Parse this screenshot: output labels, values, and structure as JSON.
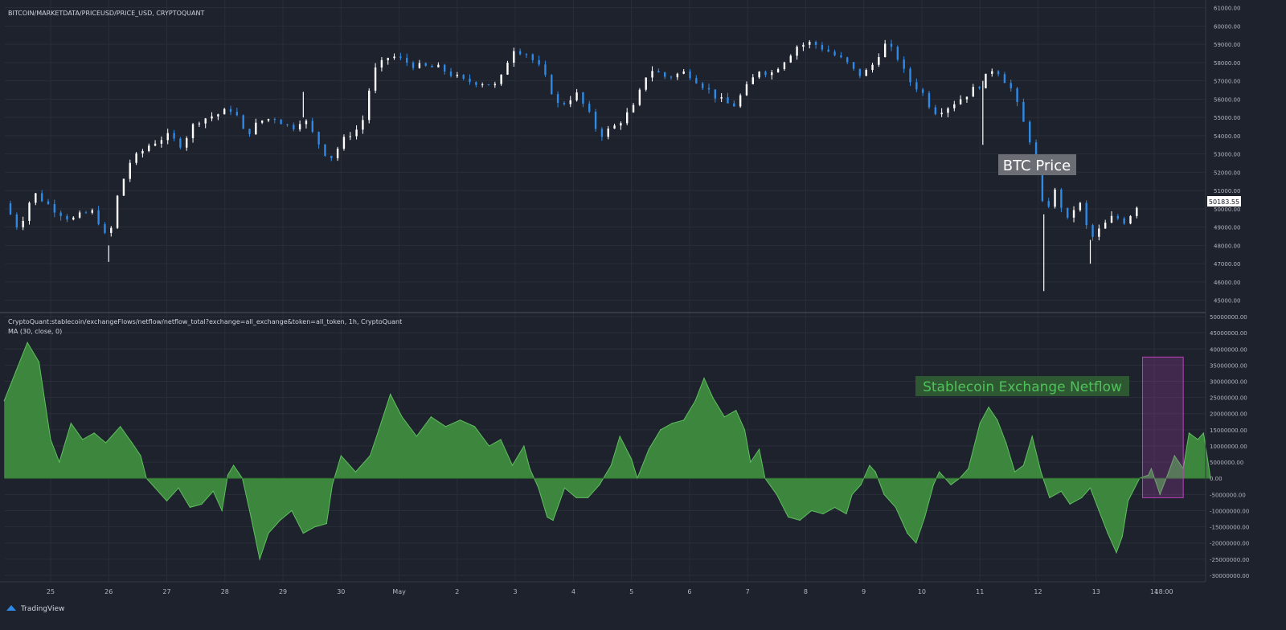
{
  "footer": {
    "brand": "TradingView"
  },
  "colors": {
    "background": "#1e222d",
    "grid": "#2a2e39",
    "up": "#ffffff",
    "down": "#2e8ae6",
    "area_fill": "#3f8f3f",
    "area_line": "#5fbf5f",
    "highlight": "#c040c0"
  },
  "chart_data": [
    {
      "type": "candlestick",
      "title": "BITCOIN/MARKETDATA/PRICEUSD/PRICE_USD, CRYPTOQUANT",
      "annotation": "BTC Price",
      "last_value_label": "50183.55",
      "last_value": 50183.55,
      "ylim": [
        44500,
        61250
      ],
      "y_ticks": [
        45000,
        46000,
        47000,
        48000,
        49000,
        50000,
        51000,
        52000,
        53000,
        54000,
        55000,
        56000,
        57000,
        58000,
        59000,
        60000,
        61000
      ],
      "y_tick_labels": [
        "45000.00",
        "46000.00",
        "47000.00",
        "48000.00",
        "49000.00",
        "50000.00",
        "51000.00",
        "52000.00",
        "53000.00",
        "54000.00",
        "55000.00",
        "56000.00",
        "57000.00",
        "58000.00",
        "59000.00",
        "60000.00",
        "61000.00"
      ],
      "x_ticks": [
        25,
        26,
        27,
        28,
        29,
        30,
        31,
        32,
        33,
        34,
        35,
        36,
        37,
        38,
        39,
        40,
        41,
        42,
        43,
        44,
        44.167
      ],
      "x_tick_labels": [
        "25",
        "26",
        "27",
        "28",
        "29",
        "30",
        "May",
        "2",
        "3",
        "4",
        "5",
        "6",
        "7",
        "8",
        "9",
        "10",
        "11",
        "12",
        "13",
        "14",
        "18:00"
      ],
      "price_path": [
        [
          24.2,
          50300
        ],
        [
          24.45,
          48900
        ],
        [
          24.7,
          50900
        ],
        [
          25.05,
          50000
        ],
        [
          25.35,
          49400
        ],
        [
          25.7,
          49900
        ],
        [
          25.85,
          49200
        ],
        [
          26.0,
          48000
        ],
        [
          26.1,
          50200
        ],
        [
          26.35,
          52500
        ],
        [
          26.7,
          53500
        ],
        [
          27.0,
          54000
        ],
        [
          27.25,
          53500
        ],
        [
          27.5,
          54800
        ],
        [
          27.9,
          55200
        ],
        [
          28.15,
          55500
        ],
        [
          28.35,
          54000
        ],
        [
          28.6,
          54800
        ],
        [
          28.85,
          55000
        ],
        [
          29.15,
          54400
        ],
        [
          29.35,
          55000
        ],
        [
          29.55,
          53900
        ],
        [
          29.8,
          52700
        ],
        [
          30.1,
          54000
        ],
        [
          30.35,
          54500
        ],
        [
          30.55,
          57500
        ],
        [
          30.85,
          58400
        ],
        [
          31.3,
          57800
        ],
        [
          31.7,
          57700
        ],
        [
          32.1,
          57000
        ],
        [
          32.45,
          56900
        ],
        [
          32.7,
          56700
        ],
        [
          32.95,
          58800
        ],
        [
          33.2,
          58500
        ],
        [
          33.45,
          57600
        ],
        [
          33.75,
          55600
        ],
        [
          34.05,
          56300
        ],
        [
          34.25,
          55300
        ],
        [
          34.45,
          54000
        ],
        [
          34.75,
          54600
        ],
        [
          35.05,
          55600
        ],
        [
          35.3,
          57700
        ],
        [
          35.6,
          57200
        ],
        [
          35.95,
          57500
        ],
        [
          36.25,
          56700
        ],
        [
          36.5,
          56000
        ],
        [
          36.75,
          55600
        ],
        [
          36.95,
          56500
        ],
        [
          37.2,
          57600
        ],
        [
          37.4,
          57400
        ],
        [
          37.65,
          58200
        ],
        [
          37.85,
          58900
        ],
        [
          38.1,
          59100
        ],
        [
          38.35,
          58700
        ],
        [
          38.7,
          58000
        ],
        [
          38.9,
          57300
        ],
        [
          39.1,
          57600
        ],
        [
          39.35,
          59000
        ],
        [
          39.55,
          58500
        ],
        [
          39.75,
          57100
        ],
        [
          40.0,
          56400
        ],
        [
          40.2,
          55300
        ],
        [
          40.4,
          55500
        ],
        [
          40.7,
          56100
        ],
        [
          41.0,
          56800
        ],
        [
          41.25,
          57800
        ],
        [
          41.55,
          56500
        ],
        [
          41.75,
          54700
        ],
        [
          41.95,
          53000
        ],
        [
          42.1,
          49700
        ],
        [
          42.3,
          51000
        ],
        [
          42.5,
          49300
        ],
        [
          42.7,
          50500
        ],
        [
          42.9,
          48300
        ],
        [
          43.1,
          49000
        ],
        [
          43.3,
          49600
        ],
        [
          43.5,
          49300
        ],
        [
          43.7,
          50183.55
        ]
      ],
      "spikes": [
        [
          26.0,
          47100
        ],
        [
          29.35,
          56400
        ],
        [
          41.05,
          53500
        ],
        [
          42.1,
          45500
        ],
        [
          42.9,
          47000
        ]
      ]
    },
    {
      "type": "area",
      "title": "CryptoQuant:stablecoin/exchangeFlows/netflow/netflow_total?exchange=all_exchange&token=all_token, 1h, CryptoQuant",
      "subtitle": "MA (30, close, 0)",
      "annotation": "Stablecoin Exchange Netflow",
      "ylim": [
        -32000000,
        51000000
      ],
      "y_ticks": [
        -30000000,
        -25000000,
        -20000000,
        -15000000,
        -10000000,
        -5000000,
        0,
        5000000,
        10000000,
        15000000,
        20000000,
        25000000,
        30000000,
        35000000,
        40000000,
        45000000,
        50000000
      ],
      "y_tick_labels": [
        "-30000000.00",
        "-25000000.00",
        "-20000000.00",
        "-15000000.00",
        "-10000000.00",
        "-5000000.00",
        "0.00",
        "5000000.00",
        "10000000.00",
        "15000000.00",
        "20000000.00",
        "25000000.00",
        "30000000.00",
        "35000000.00",
        "40000000.00",
        "45000000.00",
        "50000000.00"
      ],
      "points": [
        [
          24.2,
          24000000
        ],
        [
          24.4,
          33000000
        ],
        [
          24.6,
          42000000
        ],
        [
          24.8,
          36000000
        ],
        [
          25.0,
          12000000
        ],
        [
          25.15,
          5000000
        ],
        [
          25.35,
          17000000
        ],
        [
          25.55,
          12000000
        ],
        [
          25.75,
          14000000
        ],
        [
          25.95,
          11000000
        ],
        [
          26.2,
          16000000
        ],
        [
          26.4,
          11000000
        ],
        [
          26.55,
          7000000
        ],
        [
          26.65,
          0
        ],
        [
          26.8,
          -3000000
        ],
        [
          27.0,
          -7000000
        ],
        [
          27.2,
          -3000000
        ],
        [
          27.4,
          -9000000
        ],
        [
          27.6,
          -8000000
        ],
        [
          27.8,
          -4000000
        ],
        [
          27.95,
          -10000000
        ],
        [
          28.05,
          1000000
        ],
        [
          28.15,
          4000000
        ],
        [
          28.3,
          0
        ],
        [
          28.45,
          -12000000
        ],
        [
          28.6,
          -25000000
        ],
        [
          28.75,
          -17000000
        ],
        [
          28.95,
          -13000000
        ],
        [
          29.15,
          -10000000
        ],
        [
          29.35,
          -17000000
        ],
        [
          29.55,
          -15000000
        ],
        [
          29.75,
          -14000000
        ],
        [
          29.85,
          -2000000
        ],
        [
          30.0,
          7000000
        ],
        [
          30.25,
          2000000
        ],
        [
          30.5,
          7000000
        ],
        [
          30.65,
          15000000
        ],
        [
          30.85,
          26000000
        ],
        [
          31.05,
          19000000
        ],
        [
          31.3,
          13000000
        ],
        [
          31.55,
          19000000
        ],
        [
          31.8,
          16000000
        ],
        [
          32.05,
          18000000
        ],
        [
          32.3,
          16000000
        ],
        [
          32.55,
          10000000
        ],
        [
          32.75,
          12000000
        ],
        [
          32.95,
          4000000
        ],
        [
          33.15,
          10000000
        ],
        [
          33.25,
          3000000
        ],
        [
          33.4,
          -3000000
        ],
        [
          33.55,
          -12000000
        ],
        [
          33.65,
          -13000000
        ],
        [
          33.85,
          -3000000
        ],
        [
          34.05,
          -6000000
        ],
        [
          34.25,
          -6000000
        ],
        [
          34.45,
          -2000000
        ],
        [
          34.65,
          4000000
        ],
        [
          34.8,
          13000000
        ],
        [
          35.0,
          6000000
        ],
        [
          35.1,
          0
        ],
        [
          35.3,
          9000000
        ],
        [
          35.5,
          15000000
        ],
        [
          35.7,
          17000000
        ],
        [
          35.9,
          18000000
        ],
        [
          36.1,
          24000000
        ],
        [
          36.25,
          31000000
        ],
        [
          36.4,
          25000000
        ],
        [
          36.6,
          19000000
        ],
        [
          36.8,
          21000000
        ],
        [
          36.95,
          15000000
        ],
        [
          37.05,
          5000000
        ],
        [
          37.2,
          9000000
        ],
        [
          37.3,
          0
        ],
        [
          37.5,
          -5000000
        ],
        [
          37.7,
          -12000000
        ],
        [
          37.9,
          -13000000
        ],
        [
          38.1,
          -10000000
        ],
        [
          38.3,
          -11000000
        ],
        [
          38.5,
          -9000000
        ],
        [
          38.7,
          -11000000
        ],
        [
          38.8,
          -5000000
        ],
        [
          38.95,
          -2000000
        ],
        [
          39.1,
          4000000
        ],
        [
          39.2,
          2000000
        ],
        [
          39.35,
          -5000000
        ],
        [
          39.55,
          -9000000
        ],
        [
          39.75,
          -17000000
        ],
        [
          39.9,
          -20000000
        ],
        [
          40.05,
          -12000000
        ],
        [
          40.2,
          -2000000
        ],
        [
          40.3,
          2000000
        ],
        [
          40.5,
          -2000000
        ],
        [
          40.65,
          0
        ],
        [
          40.8,
          3000000
        ],
        [
          41.0,
          17000000
        ],
        [
          41.15,
          22000000
        ],
        [
          41.3,
          18000000
        ],
        [
          41.45,
          11000000
        ],
        [
          41.6,
          2000000
        ],
        [
          41.75,
          4000000
        ],
        [
          41.9,
          13000000
        ],
        [
          42.05,
          2000000
        ],
        [
          42.2,
          -6000000
        ],
        [
          42.4,
          -4000000
        ],
        [
          42.55,
          -8000000
        ],
        [
          42.75,
          -6000000
        ],
        [
          42.9,
          -3000000
        ],
        [
          43.05,
          -10000000
        ],
        [
          43.2,
          -17000000
        ],
        [
          43.35,
          -23000000
        ],
        [
          43.45,
          -18000000
        ],
        [
          43.55,
          -7000000
        ],
        [
          43.75,
          0
        ],
        [
          43.9,
          1000000
        ],
        [
          43.95,
          3000000
        ],
        [
          44.1,
          -5000000
        ],
        [
          44.25,
          2000000
        ],
        [
          44.35,
          7000000
        ],
        [
          44.5,
          3000000
        ],
        [
          44.6,
          14000000
        ],
        [
          44.75,
          12000000
        ],
        [
          44.85,
          14000000
        ],
        [
          44.97,
          0
        ]
      ],
      "highlight_box": {
        "x_from": 43.8,
        "x_to": 44.5,
        "y_from": -6000000,
        "y_to": 37500000
      }
    }
  ]
}
